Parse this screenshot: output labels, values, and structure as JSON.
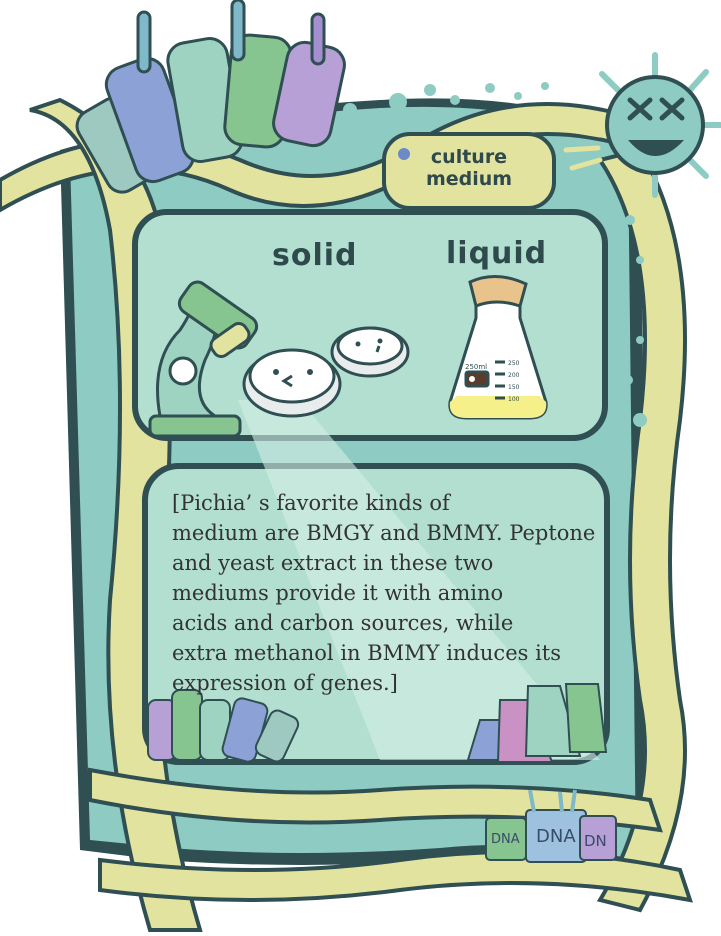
{
  "badge": {
    "line1": "culture",
    "line2": "medium"
  },
  "sections": {
    "solid_label": "solid",
    "liquid_label": "liquid"
  },
  "flask": {
    "volume_label": "250ml",
    "scale": [
      "250",
      "200",
      "150",
      "100"
    ]
  },
  "description": "[Pichia’ s favorite kinds of\nmedium are BMGY and BMMY. Peptone\nand yeast extract in these two\nmediums provide it with amino\nacids and carbon sources, while\nextra methanol in BMMY induces its\nexpression of genes.]",
  "beakers": {
    "labels": [
      "DNA",
      "DNA",
      "DN"
    ]
  },
  "colors": {
    "frame_yellow": "#e3e3a0",
    "panel_teal": "#8ecbc3",
    "panel_mint": "#b2dfd0",
    "outline_dark": "#2f4f53",
    "dark_text": "#2e4a4d"
  },
  "icons": [
    "test-tube-icon",
    "microscope-icon",
    "petri-dish-icon",
    "erlenmeyer-flask-icon",
    "virus-mascot-icon",
    "dna-beaker-icon"
  ]
}
